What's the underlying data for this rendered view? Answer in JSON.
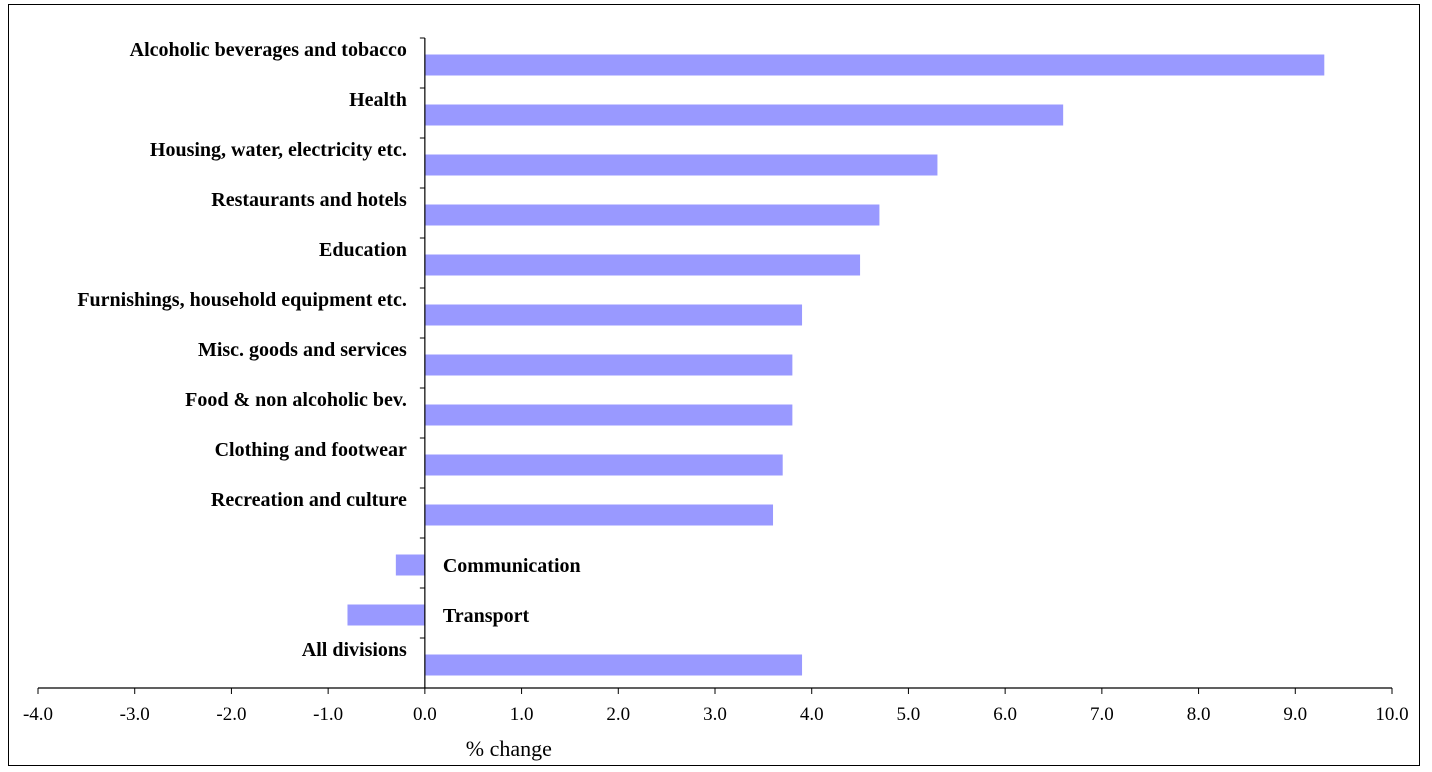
{
  "chart_data": {
    "type": "bar",
    "orientation": "horizontal",
    "title": "",
    "xlabel": "% change",
    "ylabel": "",
    "xlim": [
      -4.0,
      10.0
    ],
    "x_ticks": [
      "-4.0",
      "-3.0",
      "-2.0",
      "-1.0",
      "0.0",
      "1.0",
      "2.0",
      "3.0",
      "4.0",
      "5.0",
      "6.0",
      "7.0",
      "8.0",
      "9.0",
      "10.0"
    ],
    "grid": false,
    "legend": "none",
    "bar_color": "#9999ff",
    "categories": [
      "Alcoholic beverages and tobacco",
      "Health",
      "Housing, water, electricity etc.",
      "Restaurants and hotels",
      "Education",
      "Furnishings, household equipment etc.",
      "Misc. goods and services",
      "Food & non alcoholic bev.",
      "Clothing and footwear",
      "Recreation and culture",
      "Communication",
      "Transport",
      "All divisions"
    ],
    "values": [
      9.3,
      6.6,
      5.3,
      4.7,
      4.5,
      3.9,
      3.8,
      3.8,
      3.7,
      3.6,
      -0.3,
      -0.8,
      3.9
    ]
  }
}
